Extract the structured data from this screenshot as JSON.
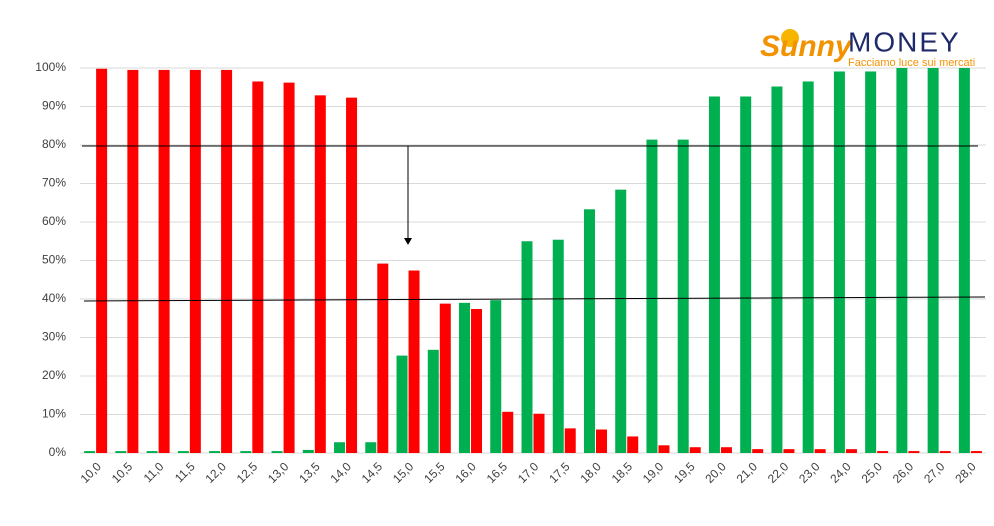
{
  "chart_data": {
    "type": "bar",
    "logo_brand": "Sunny",
    "logo_name": "MONEY",
    "logo_tagline": "Facciamo luce sui mercati",
    "categories": [
      "10,0",
      "10,5",
      "11,0",
      "11,5",
      "12,0",
      "12,5",
      "13,0",
      "13,5",
      "14,0",
      "14,5",
      "15,0",
      "15,5",
      "16,0",
      "16,5",
      "17,0",
      "17,5",
      "18,0",
      "18,5",
      "19,0",
      "19,5",
      "20,0",
      "21,0",
      "22,0",
      "23,0",
      "24,0",
      "25,0",
      "26,0",
      "27,0",
      "28,0"
    ],
    "series": [
      {
        "color": "#00b050",
        "values": [
          0.5,
          0.5,
          0.5,
          0.5,
          0.5,
          0.5,
          0.5,
          0.8,
          2.8,
          2.8,
          25.3,
          26.8,
          39,
          39.7,
          55,
          55.4,
          63.3,
          68.4,
          81.4,
          81.4,
          92.6,
          92.6,
          95.2,
          96.5,
          99.1,
          99.1,
          100,
          100,
          100
        ]
      },
      {
        "color": "#ff0000",
        "values": [
          99.8,
          99.5,
          99.5,
          99.5,
          99.5,
          96.5,
          96.2,
          92.9,
          92.3,
          49.2,
          47.4,
          38.8,
          37.4,
          10.7,
          10.2,
          6.4,
          6.1,
          4.3,
          2.0,
          1.5,
          1.5,
          1.0,
          1.0,
          1.0,
          1.0,
          0.5,
          0.5,
          0.5,
          0.5
        ]
      }
    ],
    "ylim": [
      0,
      100
    ],
    "yticks": [
      {
        "value": 0,
        "label": "0%"
      },
      {
        "value": 10,
        "label": "10%"
      },
      {
        "value": 20,
        "label": "20%"
      },
      {
        "value": 30,
        "label": "30%"
      },
      {
        "value": 40,
        "label": "40%"
      },
      {
        "value": 50,
        "label": "50%"
      },
      {
        "value": 60,
        "label": "60%"
      },
      {
        "value": 70,
        "label": "70%"
      },
      {
        "value": 80,
        "label": "80%"
      },
      {
        "value": 90,
        "label": "90%"
      },
      {
        "value": 100,
        "label": "100%"
      }
    ],
    "grid": true
  }
}
